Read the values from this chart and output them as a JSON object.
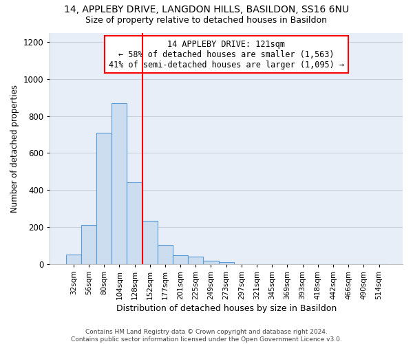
{
  "title1": "14, APPLEBY DRIVE, LANGDON HILLS, BASILDON, SS16 6NU",
  "title2": "Size of property relative to detached houses in Basildon",
  "xlabel": "Distribution of detached houses by size in Basildon",
  "ylabel": "Number of detached properties",
  "bin_labels": [
    "32sqm",
    "56sqm",
    "80sqm",
    "104sqm",
    "128sqm",
    "152sqm",
    "177sqm",
    "201sqm",
    "225sqm",
    "249sqm",
    "273sqm",
    "297sqm",
    "321sqm",
    "345sqm",
    "369sqm",
    "393sqm",
    "418sqm",
    "442sqm",
    "466sqm",
    "490sqm",
    "514sqm"
  ],
  "bar_values": [
    50,
    210,
    710,
    870,
    440,
    235,
    105,
    48,
    40,
    20,
    10,
    0,
    0,
    0,
    0,
    0,
    0,
    0,
    0,
    0,
    0
  ],
  "bar_color": "#ccddf0",
  "bar_edge_color": "#5b9bd5",
  "vline_x": 4.5,
  "vline_color": "red",
  "annotation_text": "14 APPLEBY DRIVE: 121sqm\n← 58% of detached houses are smaller (1,563)\n41% of semi-detached houses are larger (1,095) →",
  "annotation_box_color": "white",
  "annotation_edge_color": "red",
  "ylim": [
    0,
    1250
  ],
  "yticks": [
    0,
    200,
    400,
    600,
    800,
    1000,
    1200
  ],
  "footer": "Contains HM Land Registry data © Crown copyright and database right 2024.\nContains public sector information licensed under the Open Government Licence v3.0.",
  "bg_color": "#e8eef8",
  "grid_color": "#c8d0dc"
}
